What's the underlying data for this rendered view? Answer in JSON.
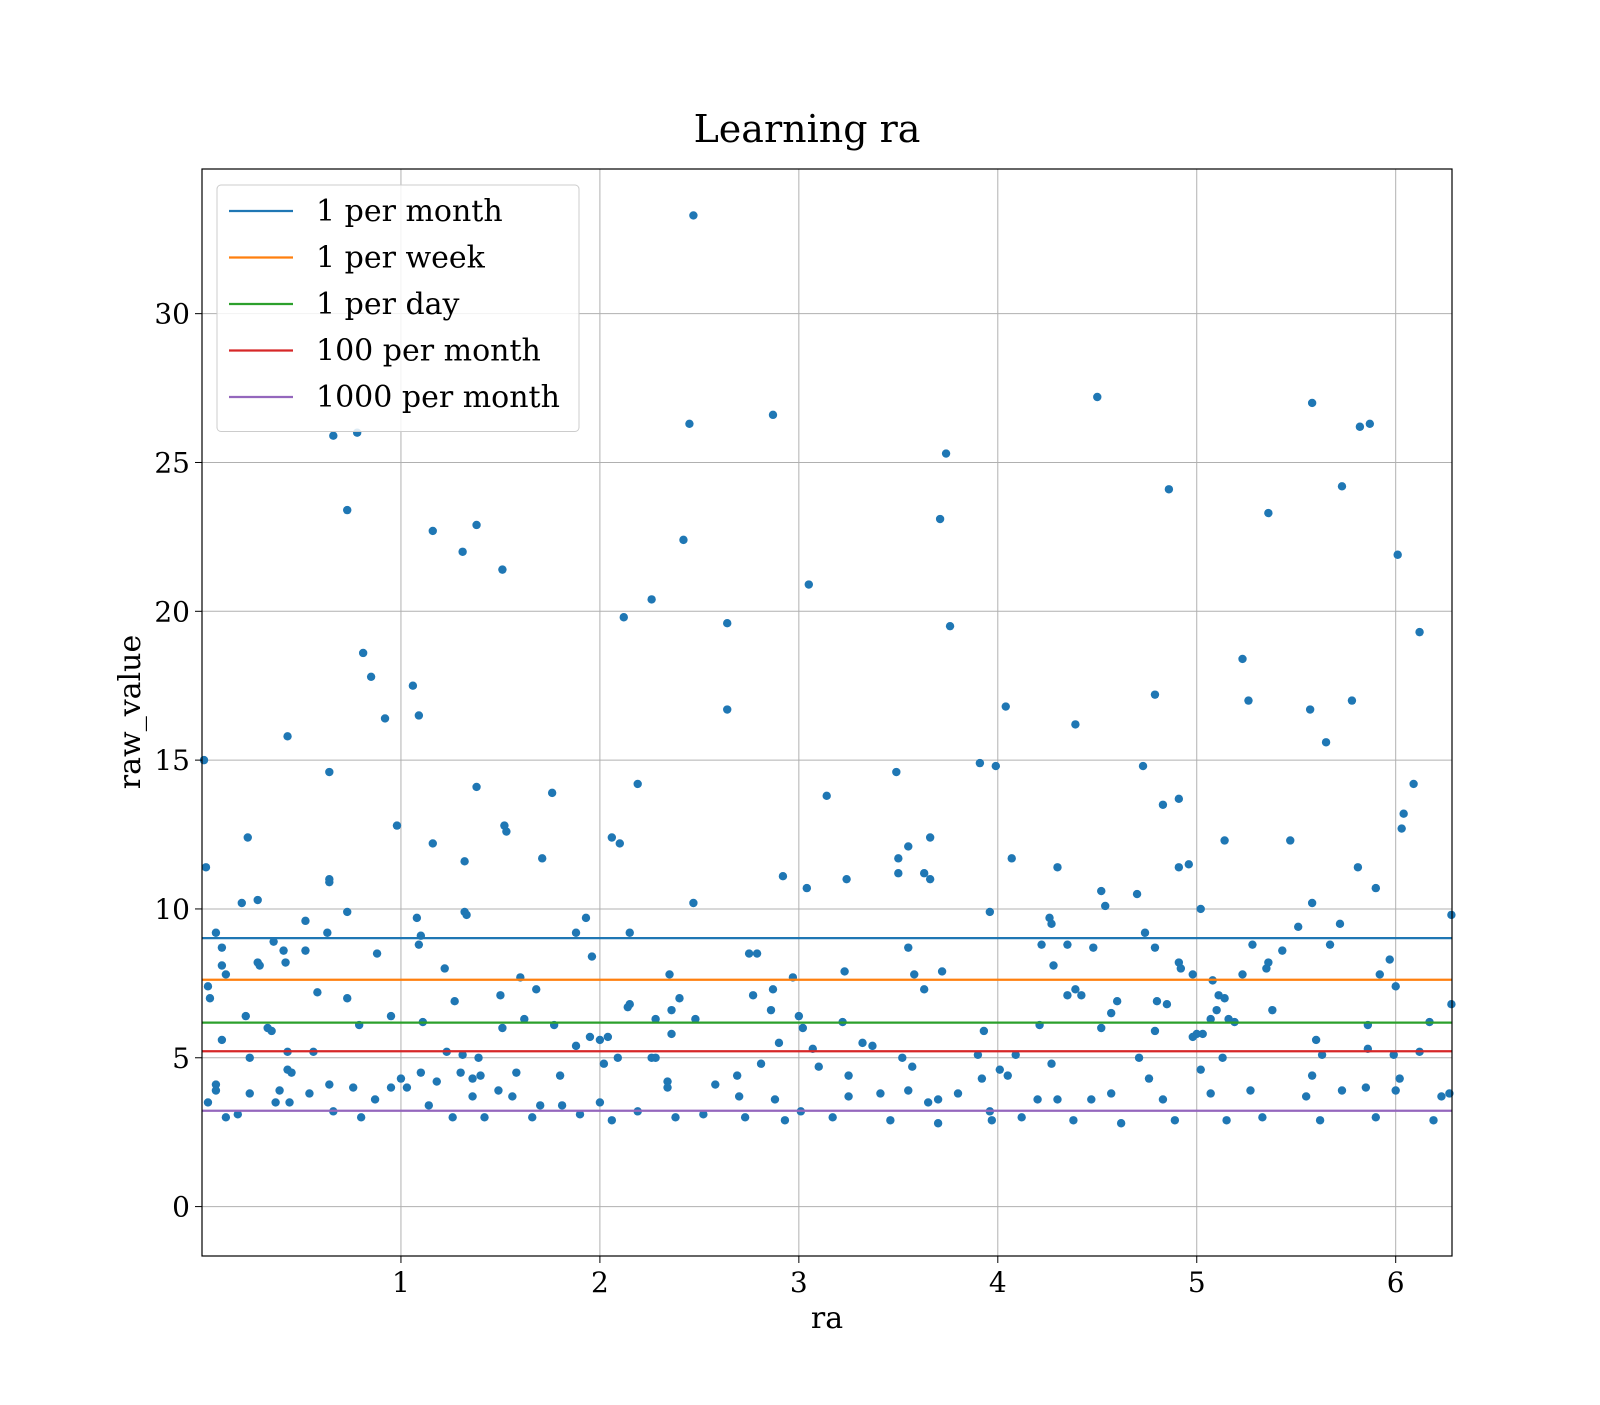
{
  "chart_data": {
    "type": "scatter",
    "title": "Learning ra",
    "xlabel": "ra",
    "ylabel": "raw_value",
    "xlim": [
      0.0,
      6.283
    ],
    "ylim": [
      -1.66,
      34.86
    ],
    "xticks": [
      1,
      2,
      3,
      4,
      5,
      6
    ],
    "yticks": [
      0,
      5,
      10,
      15,
      20,
      25,
      30
    ],
    "xtick_labels": [
      "1",
      "2",
      "3",
      "4",
      "5",
      "6"
    ],
    "ytick_labels": [
      "0",
      "5",
      "10",
      "15",
      "20",
      "25",
      "30"
    ],
    "grid": true,
    "legend_position": "top-left",
    "point_color": "#1f77b4",
    "reference_lines": [
      {
        "name": "1 per month",
        "y": 9.02,
        "color": "#1f77b4"
      },
      {
        "name": "1 per week",
        "y": 7.62,
        "color": "#ff7f0e"
      },
      {
        "name": "1 per day",
        "y": 6.18,
        "color": "#2ca02c"
      },
      {
        "name": "100 per month",
        "y": 5.22,
        "color": "#d62728"
      },
      {
        "name": "1000 per month",
        "y": 3.22,
        "color": "#9467bd"
      }
    ],
    "points": [
      [
        2.47,
        33.3
      ],
      [
        4.5,
        27.2
      ],
      [
        5.58,
        27.0
      ],
      [
        5.87,
        26.3
      ],
      [
        5.82,
        26.2
      ],
      [
        2.87,
        26.6
      ],
      [
        2.45,
        26.3
      ],
      [
        0.78,
        26.0
      ],
      [
        0.66,
        25.9
      ],
      [
        3.74,
        25.3
      ],
      [
        4.86,
        24.1
      ],
      [
        5.73,
        24.2
      ],
      [
        0.73,
        23.4
      ],
      [
        5.36,
        23.3
      ],
      [
        3.71,
        23.1
      ],
      [
        1.38,
        22.9
      ],
      [
        1.31,
        22.0
      ],
      [
        1.16,
        22.7
      ],
      [
        2.42,
        22.4
      ],
      [
        6.01,
        21.9
      ],
      [
        1.51,
        21.4
      ],
      [
        3.05,
        20.9
      ],
      [
        2.26,
        20.4
      ],
      [
        2.12,
        19.8
      ],
      [
        2.64,
        19.6
      ],
      [
        3.76,
        19.5
      ],
      [
        6.12,
        19.3
      ],
      [
        0.81,
        18.6
      ],
      [
        0.85,
        17.8
      ],
      [
        5.23,
        18.4
      ],
      [
        1.06,
        17.5
      ],
      [
        4.79,
        17.2
      ],
      [
        5.78,
        17.0
      ],
      [
        5.26,
        17.0
      ],
      [
        4.04,
        16.8
      ],
      [
        2.64,
        16.7
      ],
      [
        5.57,
        16.7
      ],
      [
        0.92,
        16.4
      ],
      [
        1.09,
        16.5
      ],
      [
        4.39,
        16.2
      ],
      [
        0.43,
        15.8
      ],
      [
        5.65,
        15.6
      ],
      [
        0.01,
        15.0
      ],
      [
        3.91,
        14.9
      ],
      [
        3.99,
        14.8
      ],
      [
        4.73,
        14.8
      ],
      [
        0.64,
        14.6
      ],
      [
        3.49,
        14.6
      ],
      [
        6.09,
        14.2
      ],
      [
        2.19,
        14.2
      ],
      [
        1.38,
        14.1
      ],
      [
        1.76,
        13.9
      ],
      [
        3.14,
        13.8
      ],
      [
        4.91,
        13.7
      ],
      [
        4.83,
        13.5
      ],
      [
        6.04,
        13.2
      ],
      [
        6.03,
        12.7
      ],
      [
        1.52,
        12.8
      ],
      [
        1.53,
        12.6
      ],
      [
        0.98,
        12.8
      ],
      [
        0.23,
        12.4
      ],
      [
        2.06,
        12.4
      ],
      [
        2.1,
        12.2
      ],
      [
        1.16,
        12.2
      ],
      [
        3.55,
        12.1
      ],
      [
        3.66,
        12.4
      ],
      [
        5.47,
        12.3
      ],
      [
        5.14,
        12.3
      ],
      [
        1.71,
        11.7
      ],
      [
        1.32,
        11.6
      ],
      [
        3.5,
        11.7
      ],
      [
        4.07,
        11.7
      ],
      [
        0.02,
        11.4
      ],
      [
        3.5,
        11.2
      ],
      [
        3.63,
        11.2
      ],
      [
        3.66,
        11.0
      ],
      [
        4.91,
        11.4
      ],
      [
        4.96,
        11.5
      ],
      [
        4.3,
        11.4
      ],
      [
        5.81,
        11.4
      ],
      [
        0.64,
        11.0
      ],
      [
        0.64,
        10.9
      ],
      [
        2.92,
        11.1
      ],
      [
        3.24,
        11.0
      ],
      [
        3.04,
        10.7
      ],
      [
        5.9,
        10.7
      ],
      [
        4.52,
        10.6
      ],
      [
        4.7,
        10.5
      ],
      [
        0.28,
        10.3
      ],
      [
        0.2,
        10.2
      ],
      [
        2.47,
        10.2
      ],
      [
        4.54,
        10.1
      ],
      [
        5.58,
        10.2
      ],
      [
        5.02,
        10.0
      ],
      [
        3.96,
        9.9
      ],
      [
        0.73,
        9.9
      ],
      [
        1.32,
        9.9
      ],
      [
        1.33,
        9.8
      ],
      [
        1.93,
        9.7
      ],
      [
        1.08,
        9.7
      ],
      [
        4.26,
        9.7
      ],
      [
        4.27,
        9.5
      ],
      [
        5.72,
        9.5
      ],
      [
        5.51,
        9.4
      ],
      [
        0.52,
        9.6
      ],
      [
        0.07,
        9.2
      ],
      [
        0.63,
        9.2
      ],
      [
        1.1,
        9.1
      ],
      [
        1.88,
        9.2
      ],
      [
        2.15,
        9.2
      ],
      [
        4.74,
        9.2
      ],
      [
        6.28,
        9.8
      ],
      [
        0.1,
        8.7
      ],
      [
        0.36,
        8.9
      ],
      [
        1.09,
        8.8
      ],
      [
        3.55,
        8.7
      ],
      [
        4.22,
        8.8
      ],
      [
        4.35,
        8.8
      ],
      [
        4.48,
        8.7
      ],
      [
        4.79,
        8.7
      ],
      [
        5.28,
        8.8
      ],
      [
        5.43,
        8.6
      ],
      [
        5.67,
        8.8
      ],
      [
        0.41,
        8.6
      ],
      [
        0.52,
        8.6
      ],
      [
        0.88,
        8.5
      ],
      [
        2.75,
        8.5
      ],
      [
        2.79,
        8.5
      ],
      [
        1.96,
        8.4
      ],
      [
        5.97,
        8.3
      ],
      [
        5.36,
        8.2
      ],
      [
        4.91,
        8.2
      ],
      [
        0.28,
        8.2
      ],
      [
        0.29,
        8.1
      ],
      [
        0.1,
        8.1
      ],
      [
        0.42,
        8.2
      ],
      [
        4.28,
        8.1
      ],
      [
        1.22,
        8.0
      ],
      [
        5.35,
        8.0
      ],
      [
        4.92,
        8.0
      ],
      [
        2.35,
        7.8
      ],
      [
        3.23,
        7.9
      ],
      [
        3.72,
        7.9
      ],
      [
        3.58,
        7.8
      ],
      [
        5.23,
        7.8
      ],
      [
        5.92,
        7.8
      ],
      [
        0.12,
        7.8
      ],
      [
        1.6,
        7.7
      ],
      [
        2.97,
        7.7
      ],
      [
        4.98,
        7.8
      ],
      [
        0.03,
        7.4
      ],
      [
        2.87,
        7.3
      ],
      [
        1.68,
        7.3
      ],
      [
        3.63,
        7.3
      ],
      [
        4.39,
        7.3
      ],
      [
        5.08,
        7.6
      ],
      [
        5.11,
        7.1
      ],
      [
        0.58,
        7.2
      ],
      [
        0.04,
        7.0
      ],
      [
        0.73,
        7.0
      ],
      [
        1.5,
        7.1
      ],
      [
        2.4,
        7.0
      ],
      [
        2.77,
        7.1
      ],
      [
        4.35,
        7.1
      ],
      [
        4.42,
        7.1
      ],
      [
        4.6,
        6.9
      ],
      [
        4.8,
        6.9
      ],
      [
        4.85,
        6.8
      ],
      [
        5.14,
        7.0
      ],
      [
        6.0,
        7.4
      ],
      [
        6.28,
        6.8
      ],
      [
        1.27,
        6.9
      ],
      [
        2.15,
        6.8
      ],
      [
        2.14,
        6.7
      ],
      [
        2.36,
        6.6
      ],
      [
        2.48,
        6.3
      ],
      [
        2.86,
        6.6
      ],
      [
        3.0,
        6.4
      ],
      [
        5.1,
        6.6
      ],
      [
        5.38,
        6.6
      ],
      [
        5.07,
        6.3
      ],
      [
        4.57,
        6.5
      ],
      [
        0.22,
        6.4
      ],
      [
        0.95,
        6.4
      ],
      [
        1.62,
        6.3
      ],
      [
        2.28,
        6.3
      ],
      [
        3.22,
        6.2
      ],
      [
        3.02,
        6.0
      ],
      [
        1.77,
        6.1
      ],
      [
        1.11,
        6.2
      ],
      [
        0.79,
        6.1
      ],
      [
        0.33,
        6.0
      ],
      [
        0.35,
        5.9
      ],
      [
        1.51,
        6.0
      ],
      [
        4.52,
        6.0
      ],
      [
        4.21,
        6.1
      ],
      [
        5.16,
        6.3
      ],
      [
        5.19,
        6.2
      ],
      [
        5.86,
        6.1
      ],
      [
        6.17,
        6.2
      ],
      [
        3.93,
        5.9
      ],
      [
        4.79,
        5.9
      ],
      [
        5.0,
        5.8
      ],
      [
        5.03,
        5.8
      ],
      [
        1.95,
        5.7
      ],
      [
        2.04,
        5.7
      ],
      [
        2.0,
        5.6
      ],
      [
        2.36,
        5.8
      ],
      [
        2.9,
        5.5
      ],
      [
        3.32,
        5.5
      ],
      [
        3.37,
        5.4
      ],
      [
        4.98,
        5.7
      ],
      [
        5.6,
        5.6
      ],
      [
        0.1,
        5.6
      ],
      [
        1.88,
        5.4
      ],
      [
        3.07,
        5.3
      ],
      [
        1.23,
        5.2
      ],
      [
        0.24,
        5.0
      ],
      [
        0.43,
        5.2
      ],
      [
        0.56,
        5.2
      ],
      [
        1.31,
        5.1
      ],
      [
        1.39,
        5.0
      ],
      [
        2.09,
        5.0
      ],
      [
        2.26,
        5.0
      ],
      [
        2.28,
        5.0
      ],
      [
        3.52,
        5.0
      ],
      [
        3.9,
        5.1
      ],
      [
        4.09,
        5.1
      ],
      [
        4.71,
        5.0
      ],
      [
        5.13,
        5.0
      ],
      [
        5.63,
        5.1
      ],
      [
        5.86,
        5.3
      ],
      [
        5.99,
        5.1
      ],
      [
        6.12,
        5.2
      ],
      [
        0.43,
        4.6
      ],
      [
        0.45,
        4.5
      ],
      [
        1.0,
        4.3
      ],
      [
        1.1,
        4.5
      ],
      [
        1.3,
        4.5
      ],
      [
        1.36,
        4.3
      ],
      [
        1.4,
        4.4
      ],
      [
        1.58,
        4.5
      ],
      [
        1.8,
        4.4
      ],
      [
        2.02,
        4.8
      ],
      [
        2.34,
        4.2
      ],
      [
        2.69,
        4.4
      ],
      [
        2.81,
        4.8
      ],
      [
        3.1,
        4.7
      ],
      [
        3.25,
        4.4
      ],
      [
        3.57,
        4.7
      ],
      [
        3.92,
        4.3
      ],
      [
        4.01,
        4.6
      ],
      [
        4.05,
        4.4
      ],
      [
        4.27,
        4.8
      ],
      [
        4.76,
        4.3
      ],
      [
        5.02,
        4.6
      ],
      [
        5.58,
        4.4
      ],
      [
        6.02,
        4.3
      ],
      [
        0.07,
        4.1
      ],
      [
        0.07,
        3.9
      ],
      [
        0.18,
        3.1
      ],
      [
        0.24,
        3.8
      ],
      [
        0.39,
        3.9
      ],
      [
        0.54,
        3.8
      ],
      [
        0.64,
        4.1
      ],
      [
        0.76,
        4.0
      ],
      [
        0.87,
        3.6
      ],
      [
        0.95,
        4.0
      ],
      [
        1.03,
        4.0
      ],
      [
        1.18,
        4.2
      ],
      [
        1.36,
        3.7
      ],
      [
        1.49,
        3.9
      ],
      [
        1.56,
        3.7
      ],
      [
        1.7,
        3.4
      ],
      [
        1.81,
        3.4
      ],
      [
        2.0,
        3.5
      ],
      [
        2.19,
        3.2
      ],
      [
        2.34,
        4.0
      ],
      [
        2.58,
        4.1
      ],
      [
        2.7,
        3.7
      ],
      [
        2.88,
        3.6
      ],
      [
        3.01,
        3.2
      ],
      [
        3.25,
        3.7
      ],
      [
        3.41,
        3.8
      ],
      [
        3.55,
        3.9
      ],
      [
        3.65,
        3.5
      ],
      [
        3.7,
        3.6
      ],
      [
        3.8,
        3.8
      ],
      [
        3.96,
        3.2
      ],
      [
        4.2,
        3.6
      ],
      [
        4.3,
        3.6
      ],
      [
        4.47,
        3.6
      ],
      [
        4.57,
        3.8
      ],
      [
        4.83,
        3.6
      ],
      [
        5.07,
        3.8
      ],
      [
        5.27,
        3.9
      ],
      [
        5.55,
        3.7
      ],
      [
        5.73,
        3.9
      ],
      [
        5.85,
        4.0
      ],
      [
        6.0,
        3.9
      ],
      [
        6.23,
        3.7
      ],
      [
        6.27,
        3.8
      ],
      [
        0.03,
        3.5
      ],
      [
        0.12,
        3.0
      ],
      [
        0.37,
        3.5
      ],
      [
        0.44,
        3.5
      ],
      [
        0.66,
        3.2
      ],
      [
        0.8,
        3.0
      ],
      [
        1.14,
        3.4
      ],
      [
        1.26,
        3.0
      ],
      [
        1.42,
        3.0
      ],
      [
        1.66,
        3.0
      ],
      [
        1.9,
        3.1
      ],
      [
        2.06,
        2.9
      ],
      [
        2.38,
        3.0
      ],
      [
        2.52,
        3.1
      ],
      [
        2.73,
        3.0
      ],
      [
        2.93,
        2.9
      ],
      [
        3.17,
        3.0
      ],
      [
        3.46,
        2.9
      ],
      [
        3.7,
        2.8
      ],
      [
        3.97,
        2.9
      ],
      [
        4.12,
        3.0
      ],
      [
        4.38,
        2.9
      ],
      [
        4.62,
        2.8
      ],
      [
        4.89,
        2.9
      ],
      [
        5.15,
        2.9
      ],
      [
        5.33,
        3.0
      ],
      [
        5.62,
        2.9
      ],
      [
        5.9,
        3.0
      ],
      [
        6.19,
        2.9
      ]
    ]
  }
}
